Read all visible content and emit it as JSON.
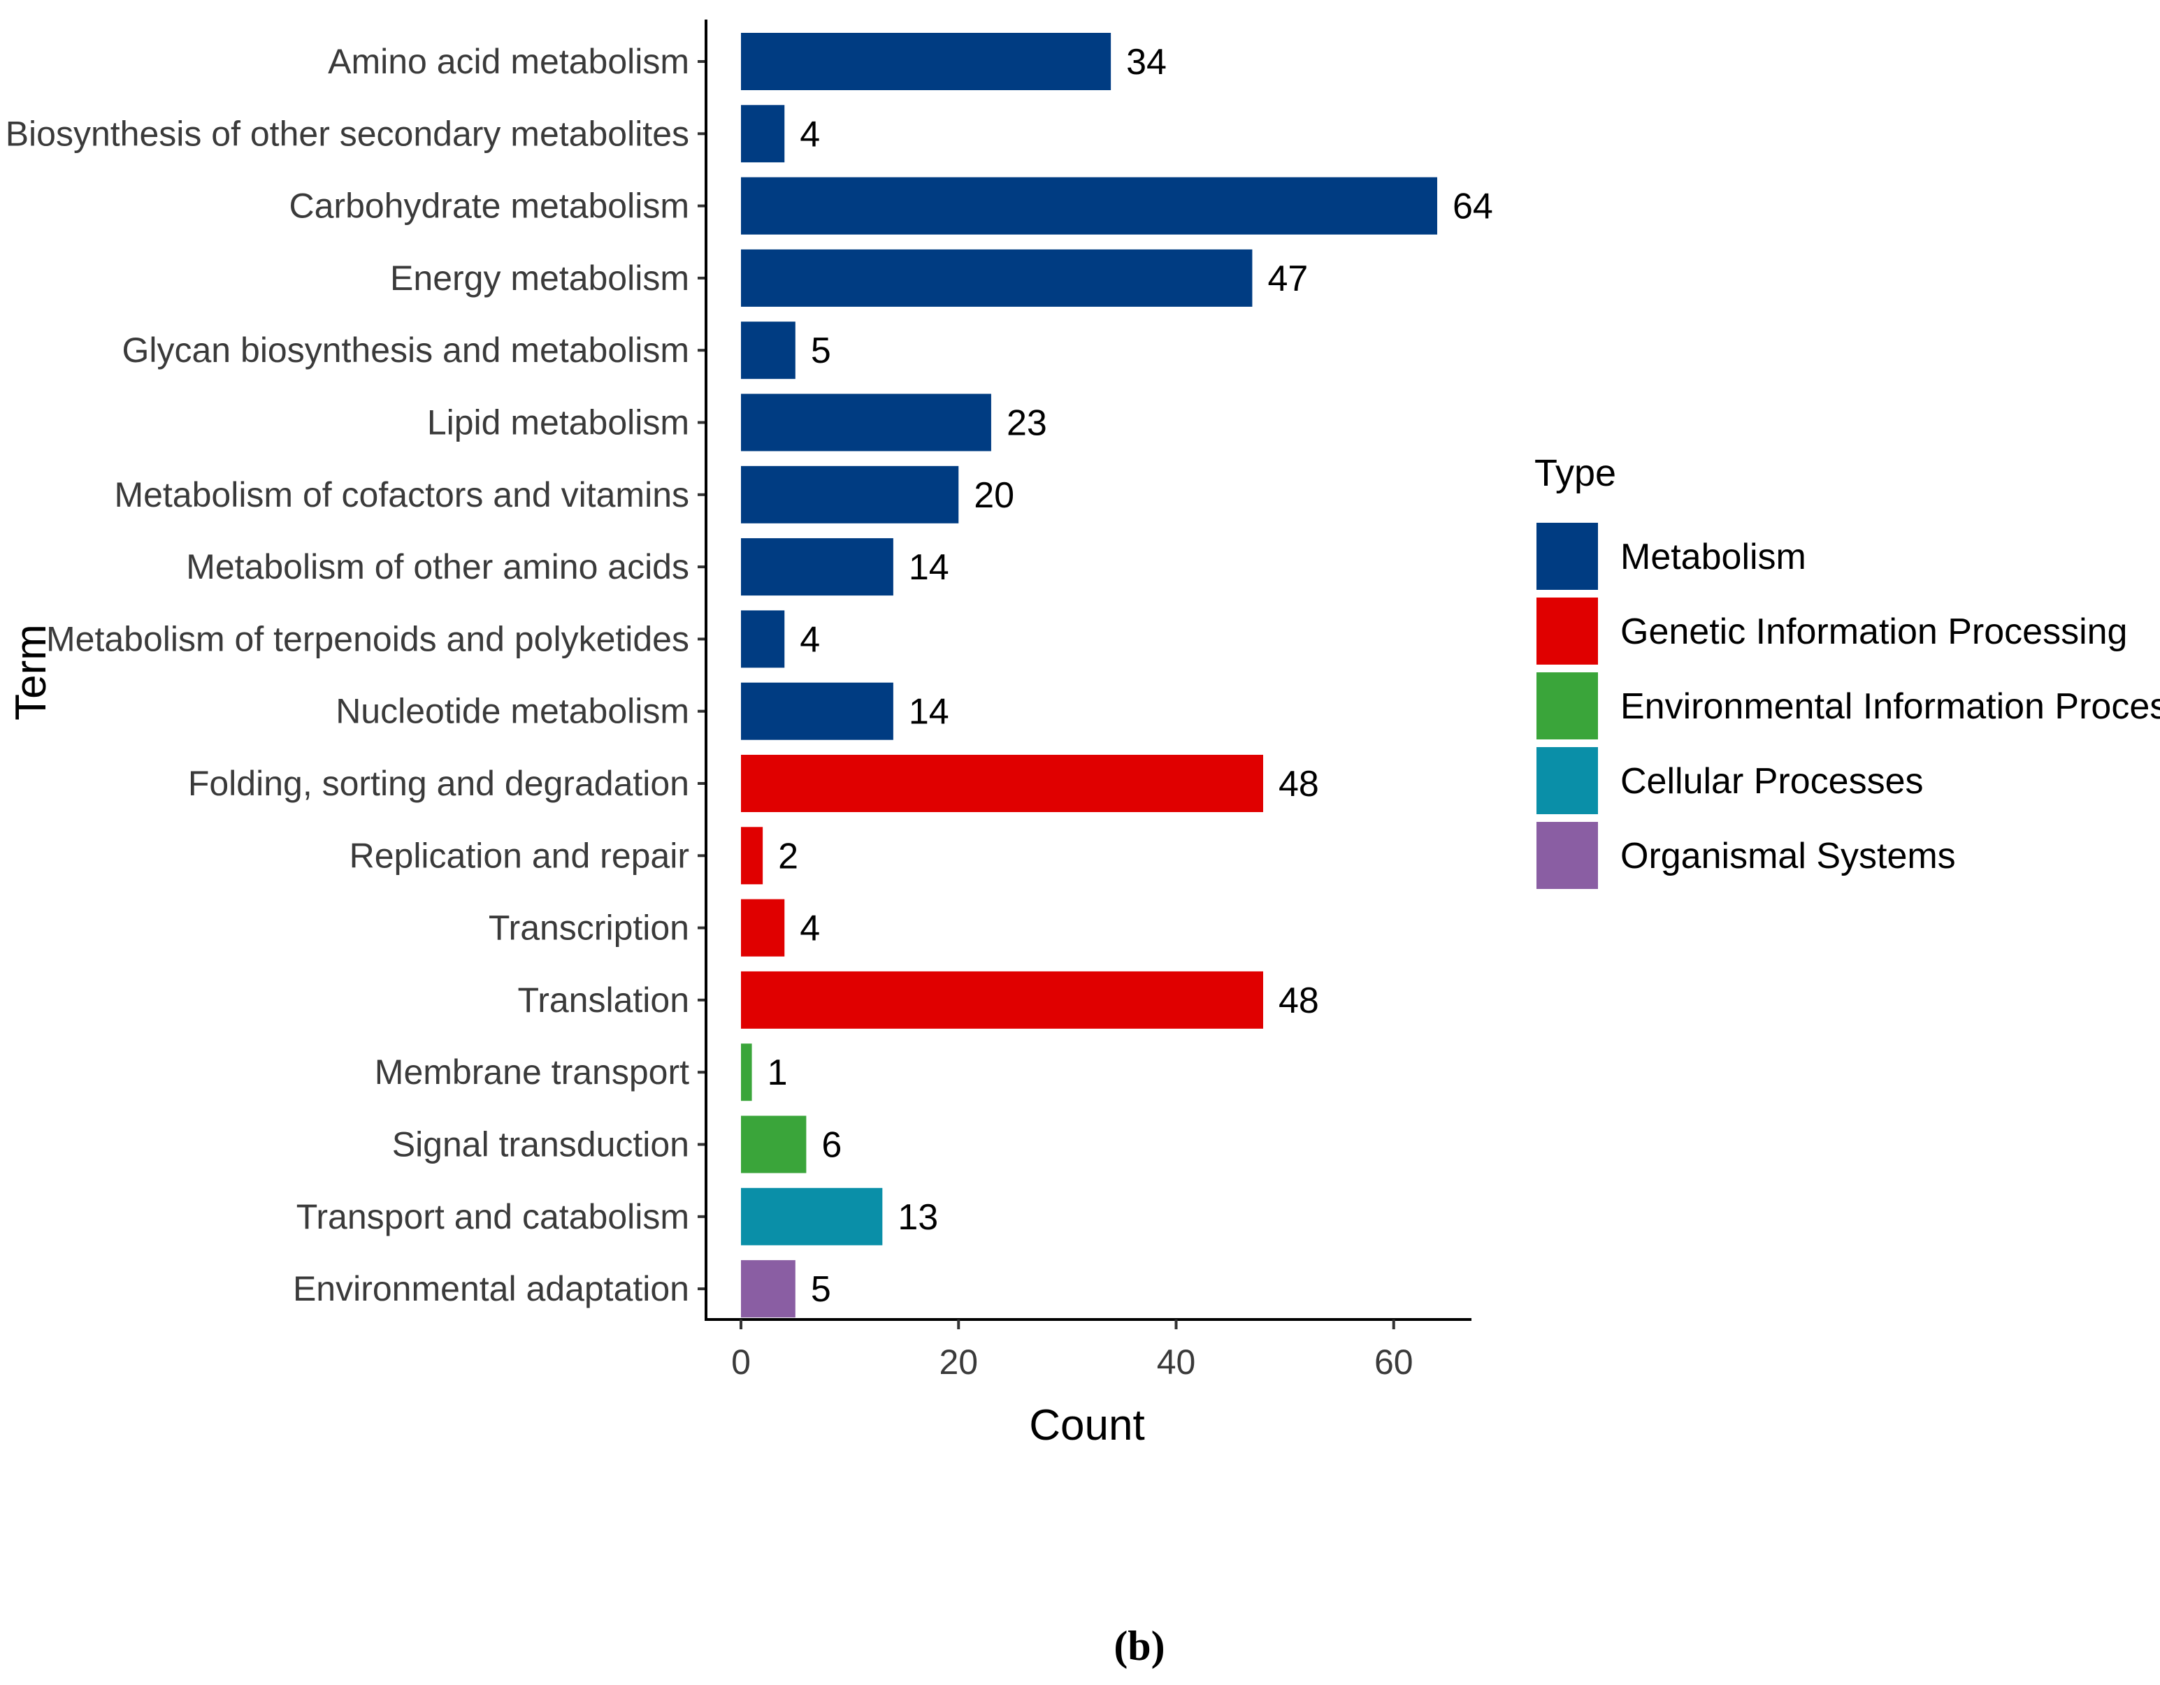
{
  "chart_data": {
    "type": "bar",
    "orientation": "horizontal",
    "xlabel": "Count",
    "ylabel": "Term",
    "xlim": [
      -3,
      67
    ],
    "xticks": [
      0,
      20,
      40,
      60
    ],
    "categories": [
      "Amino acid metabolism",
      "Biosynthesis of other secondary metabolites",
      "Carbohydrate metabolism",
      "Energy metabolism",
      "Glycan biosynthesis and metabolism",
      "Lipid metabolism",
      "Metabolism of cofactors and vitamins",
      "Metabolism of other amino acids",
      "Metabolism of terpenoids and polyketides",
      "Nucleotide metabolism",
      "Folding, sorting and degradation",
      "Replication and repair",
      "Transcription",
      "Translation",
      "Membrane transport",
      "Signal transduction",
      "Transport and catabolism",
      "Environmental adaptation"
    ],
    "values": [
      34,
      4,
      64,
      47,
      5,
      23,
      20,
      14,
      4,
      14,
      48,
      2,
      4,
      48,
      1,
      6,
      13,
      5
    ],
    "types": [
      "Metabolism",
      "Metabolism",
      "Metabolism",
      "Metabolism",
      "Metabolism",
      "Metabolism",
      "Metabolism",
      "Metabolism",
      "Metabolism",
      "Metabolism",
      "Genetic Information Processing",
      "Genetic Information Processing",
      "Genetic Information Processing",
      "Genetic Information Processing",
      "Environmental Information Processing",
      "Environmental Information Processing",
      "Cellular Processes",
      "Organismal Systems"
    ],
    "legend": {
      "title": "Type",
      "position": "right",
      "entries": [
        {
          "name": "Metabolism",
          "color": "#003c82"
        },
        {
          "name": "Genetic Information Processing",
          "color": "#e00000"
        },
        {
          "name": "Environmental Information Processing",
          "color": "#3aa53a"
        },
        {
          "name": "Cellular Processes",
          "color": "#0a8fa8"
        },
        {
          "name": "Organismal Systems",
          "color": "#8a5ea3"
        }
      ]
    },
    "grid": false
  },
  "caption": "(b)"
}
